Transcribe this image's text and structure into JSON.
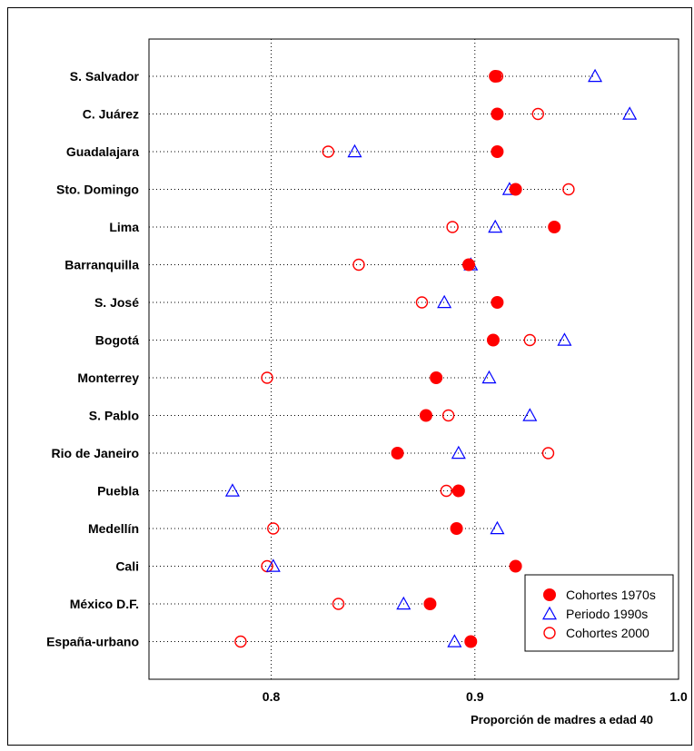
{
  "chart_data": {
    "type": "scatter",
    "xlabel": "Proporción de madres a edad 40",
    "xlim": [
      0.74,
      1.0
    ],
    "xticks": [
      "0.8",
      "0.9",
      "1.0"
    ],
    "xtick_values": [
      0.8,
      0.9,
      1.0
    ],
    "grid_x": true,
    "legend_position": "bottom-right",
    "categories": [
      "S. Salvador",
      "C. Juárez",
      "Guadalajara",
      "Sto. Domingo",
      "Lima",
      "Barranquilla",
      "S. José",
      "Bogotá",
      "Monterrey",
      "S. Pablo",
      "Rio de Janeiro",
      "Puebla",
      "Medellín",
      "Cali",
      "México D.F.",
      "España-urbano"
    ],
    "series": [
      {
        "name": "Cohortes 1970s",
        "marker": "filled-circle",
        "color": "#ff0000",
        "values": [
          0.91,
          0.911,
          0.911,
          0.92,
          0.939,
          0.897,
          0.911,
          0.909,
          0.881,
          0.876,
          0.862,
          0.892,
          0.891,
          0.92,
          0.878,
          0.898
        ]
      },
      {
        "name": "Periodo 1990s",
        "marker": "open-triangle",
        "color": "#0000ff",
        "values": [
          0.959,
          0.976,
          0.841,
          0.917,
          0.91,
          0.898,
          0.885,
          0.944,
          0.907,
          0.927,
          0.892,
          0.781,
          0.911,
          0.801,
          0.865,
          0.89
        ]
      },
      {
        "name": "Cohortes 2000",
        "marker": "open-circle",
        "color": "#ff0000",
        "values": [
          0.911,
          0.931,
          0.828,
          0.946,
          0.889,
          0.843,
          0.874,
          0.927,
          0.798,
          0.887,
          0.936,
          0.886,
          0.801,
          0.798,
          0.833,
          0.785
        ]
      }
    ]
  }
}
